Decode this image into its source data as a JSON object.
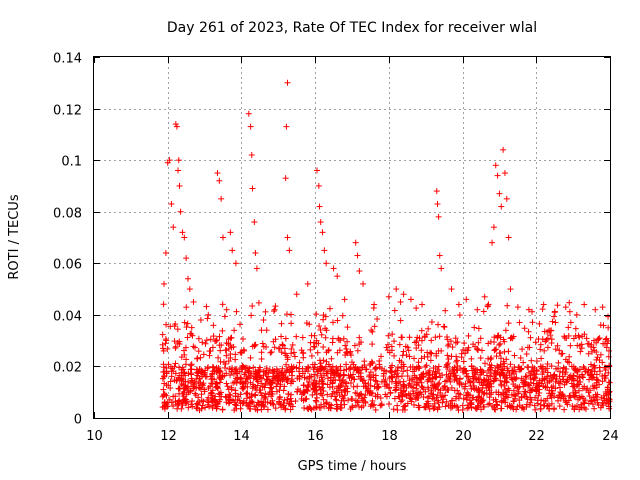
{
  "chart_data": {
    "type": "scatter",
    "title": "Day 261 of 2023, Rate Of TEC Index for receiver wlal",
    "xlabel": "GPS time / hours",
    "ylabel": "ROTI / TECUs",
    "xlim": [
      10,
      24
    ],
    "ylim": [
      0,
      0.14
    ],
    "x_ticks": [
      "10",
      "12",
      "14",
      "16",
      "18",
      "20",
      "22",
      "24"
    ],
    "y_ticks": [
      "0",
      "0.02",
      "0.04",
      "0.06",
      "0.08",
      "0.1",
      "0.12",
      "0.14"
    ],
    "grid": true,
    "marker": "+",
    "color": "#ff0000",
    "data_start_hour": 11.85,
    "data_end_hour": 24.0,
    "points": [
      [
        12.0,
        0.099
      ],
      [
        12.05,
        0.1
      ],
      [
        12.1,
        0.083
      ],
      [
        12.15,
        0.074
      ],
      [
        12.22,
        0.114
      ],
      [
        12.25,
        0.113
      ],
      [
        12.28,
        0.096
      ],
      [
        12.3,
        0.1
      ],
      [
        12.32,
        0.09
      ],
      [
        12.35,
        0.08
      ],
      [
        12.4,
        0.072
      ],
      [
        12.45,
        0.07
      ],
      [
        12.5,
        0.062
      ],
      [
        12.55,
        0.054
      ],
      [
        12.6,
        0.05
      ],
      [
        13.35,
        0.095
      ],
      [
        13.4,
        0.092
      ],
      [
        13.45,
        0.085
      ],
      [
        13.5,
        0.07
      ],
      [
        13.7,
        0.072
      ],
      [
        13.75,
        0.065
      ],
      [
        13.85,
        0.06
      ],
      [
        14.2,
        0.118
      ],
      [
        14.25,
        0.113
      ],
      [
        14.28,
        0.102
      ],
      [
        14.3,
        0.089
      ],
      [
        14.35,
        0.076
      ],
      [
        14.38,
        0.064
      ],
      [
        14.42,
        0.058
      ],
      [
        15.25,
        0.13
      ],
      [
        15.22,
        0.113
      ],
      [
        15.2,
        0.093
      ],
      [
        15.25,
        0.07
      ],
      [
        15.3,
        0.065
      ],
      [
        16.05,
        0.096
      ],
      [
        16.1,
        0.09
      ],
      [
        16.12,
        0.082
      ],
      [
        16.15,
        0.076
      ],
      [
        16.2,
        0.072
      ],
      [
        16.25,
        0.065
      ],
      [
        16.3,
        0.06
      ],
      [
        16.5,
        0.058
      ],
      [
        16.6,
        0.055
      ],
      [
        17.1,
        0.068
      ],
      [
        17.15,
        0.063
      ],
      [
        17.2,
        0.057
      ],
      [
        17.3,
        0.052
      ],
      [
        18.2,
        0.05
      ],
      [
        18.4,
        0.048
      ],
      [
        18.6,
        0.046
      ],
      [
        19.3,
        0.088
      ],
      [
        19.32,
        0.083
      ],
      [
        19.35,
        0.078
      ],
      [
        19.38,
        0.063
      ],
      [
        19.42,
        0.058
      ],
      [
        19.7,
        0.05
      ],
      [
        20.1,
        0.046
      ],
      [
        20.9,
        0.098
      ],
      [
        20.95,
        0.094
      ],
      [
        21.0,
        0.087
      ],
      [
        21.05,
        0.082
      ],
      [
        21.1,
        0.104
      ],
      [
        21.15,
        0.095
      ],
      [
        21.2,
        0.085
      ],
      [
        21.25,
        0.07
      ],
      [
        20.85,
        0.074
      ],
      [
        20.8,
        0.068
      ],
      [
        21.3,
        0.05
      ],
      [
        21.5,
        0.043
      ],
      [
        21.8,
        0.042
      ],
      [
        22.2,
        0.044
      ],
      [
        22.5,
        0.041
      ],
      [
        22.8,
        0.043
      ],
      [
        23.1,
        0.04
      ],
      [
        23.3,
        0.044
      ],
      [
        23.6,
        0.042
      ],
      [
        23.8,
        0.043
      ],
      [
        23.95,
        0.035
      ],
      [
        11.9,
        0.052
      ],
      [
        11.95,
        0.064
      ],
      [
        12.7,
        0.045
      ],
      [
        12.9,
        0.038
      ],
      [
        13.1,
        0.04
      ],
      [
        13.6,
        0.042
      ],
      [
        14.6,
        0.038
      ],
      [
        14.9,
        0.042
      ],
      [
        15.5,
        0.048
      ],
      [
        15.8,
        0.052
      ],
      [
        16.8,
        0.046
      ],
      [
        17.6,
        0.044
      ],
      [
        18.0,
        0.047
      ],
      [
        18.9,
        0.044
      ],
      [
        19.9,
        0.044
      ],
      [
        20.4,
        0.042
      ],
      [
        20.6,
        0.047
      ]
    ]
  }
}
